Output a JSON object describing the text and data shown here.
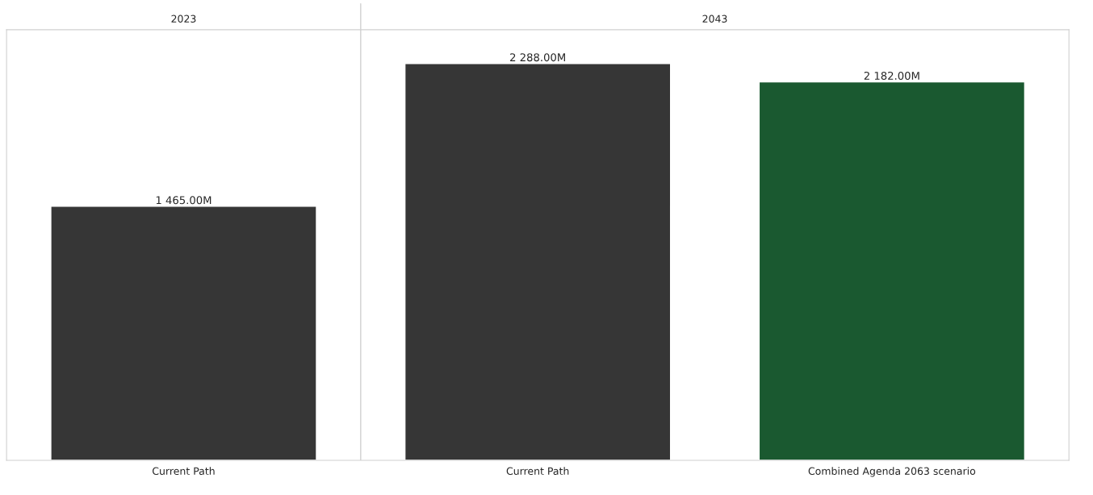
{
  "chart_data": {
    "type": "bar",
    "categories": [
      "Current Path",
      "Current Path",
      "Combined Agenda 2063 scenario"
    ],
    "values": [
      1465,
      2288,
      2182
    ],
    "colors": [
      "#363636",
      "#363636",
      "#1a5930"
    ],
    "value_labels": [
      "1 465.00M",
      "2 288.00M",
      "2 182.00M"
    ],
    "annotations": [
      "2023",
      "2043"
    ],
    "grid": false,
    "legend": false
  }
}
